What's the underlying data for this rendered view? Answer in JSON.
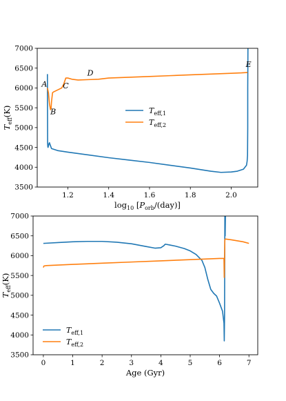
{
  "colors": {
    "teff1": "#1f77b4",
    "teff2": "#ff7f0e"
  },
  "chart_data": [
    {
      "type": "line",
      "xlabel": "log10 [Porb/(day)]",
      "ylabel": "Teff(K)",
      "xlim": [
        1.05,
        2.13
      ],
      "ylim": [
        3500,
        7000
      ],
      "xticks": [
        "1.2",
        "1.4",
        "1.6",
        "1.8",
        "2.0"
      ],
      "yticks": [
        "3500",
        "4000",
        "4500",
        "5000",
        "5500",
        "6000",
        "6500",
        "7000"
      ],
      "legend": {
        "placement": "center",
        "entries": [
          "Teff,1",
          "Teff,2"
        ]
      },
      "series": [
        {
          "name": "Teff,1",
          "x": [
            1.1,
            1.101,
            1.102,
            1.103,
            1.104,
            1.106,
            1.108,
            1.11,
            1.113,
            1.12,
            1.15,
            1.2,
            1.3,
            1.4,
            1.5,
            1.6,
            1.7,
            1.8,
            1.9,
            1.95,
            2.0,
            2.03,
            2.06,
            2.075,
            2.078,
            2.08,
            2.081,
            2.081,
            2.082,
            2.083
          ],
          "y": [
            6350,
            4600,
            4520,
            4500,
            4520,
            4560,
            4600,
            4620,
            4570,
            4470,
            4420,
            4380,
            4310,
            4240,
            4180,
            4120,
            4050,
            3980,
            3900,
            3870,
            3880,
            3900,
            3950,
            4050,
            4150,
            4300,
            5000,
            6000,
            7000,
            7000
          ]
        },
        {
          "name": "Teff,2",
          "x": [
            1.1,
            1.105,
            1.11,
            1.115,
            1.118,
            1.12,
            1.125,
            1.13,
            1.15,
            1.17,
            1.18,
            1.19,
            1.2,
            1.22,
            1.25,
            1.3,
            1.35,
            1.4,
            1.5,
            1.6,
            1.7,
            1.8,
            1.9,
            2.0,
            2.05,
            2.08
          ],
          "y": [
            6000,
            5880,
            5600,
            5450,
            5500,
            5650,
            5880,
            5900,
            5950,
            6000,
            6100,
            6250,
            6250,
            6220,
            6200,
            6210,
            6220,
            6250,
            6270,
            6290,
            6310,
            6330,
            6350,
            6370,
            6380,
            6390
          ]
        }
      ],
      "annotations": [
        {
          "text": "A",
          "x": 1.085,
          "y": 6030
        },
        {
          "text": "B",
          "x": 1.128,
          "y": 5340
        },
        {
          "text": "C",
          "x": 1.19,
          "y": 5990
        },
        {
          "text": "D",
          "x": 1.31,
          "y": 6310
        },
        {
          "text": "E",
          "x": 2.085,
          "y": 6530
        }
      ]
    },
    {
      "type": "line",
      "xlabel": "Age (Gyr)",
      "ylabel": "Teff(K)",
      "xlim": [
        -0.35,
        7.3
      ],
      "ylim": [
        3500,
        7000
      ],
      "xticks": [
        "0",
        "1",
        "2",
        "3",
        "4",
        "5",
        "6",
        "7"
      ],
      "yticks": [
        "3500",
        "4000",
        "4500",
        "5000",
        "5500",
        "6000",
        "6500",
        "7000"
      ],
      "legend": {
        "placement": "lower left",
        "entries": [
          "Teff,1",
          "Teff,2"
        ]
      },
      "series": [
        {
          "name": "Teff,1",
          "x": [
            0.0,
            0.5,
            1.0,
            1.5,
            2.0,
            2.5,
            3.0,
            3.5,
            3.8,
            4.0,
            4.1,
            4.15,
            4.3,
            4.5,
            4.8,
            5.0,
            5.2,
            5.4,
            5.5,
            5.6,
            5.7,
            5.8,
            5.9,
            6.0,
            6.05,
            6.1,
            6.15,
            6.16,
            6.17,
            6.18,
            6.19,
            6.2
          ],
          "y": [
            6310,
            6330,
            6350,
            6360,
            6360,
            6340,
            6300,
            6230,
            6190,
            6200,
            6250,
            6290,
            6270,
            6240,
            6180,
            6120,
            6030,
            5880,
            5700,
            5400,
            5150,
            5050,
            4980,
            4800,
            4700,
            4600,
            4300,
            3850,
            4500,
            7000,
            6500,
            7000
          ]
        },
        {
          "name": "Teff,2",
          "x": [
            0.0,
            0.02,
            0.1,
            1.0,
            2.0,
            3.0,
            4.0,
            5.0,
            6.0,
            6.15,
            6.16,
            6.17,
            6.18,
            6.2,
            6.4,
            6.8,
            7.0
          ],
          "y": [
            5700,
            5740,
            5750,
            5780,
            5810,
            5840,
            5870,
            5900,
            5930,
            5930,
            5450,
            5950,
            6400,
            6420,
            6400,
            6350,
            6310
          ]
        }
      ]
    }
  ]
}
